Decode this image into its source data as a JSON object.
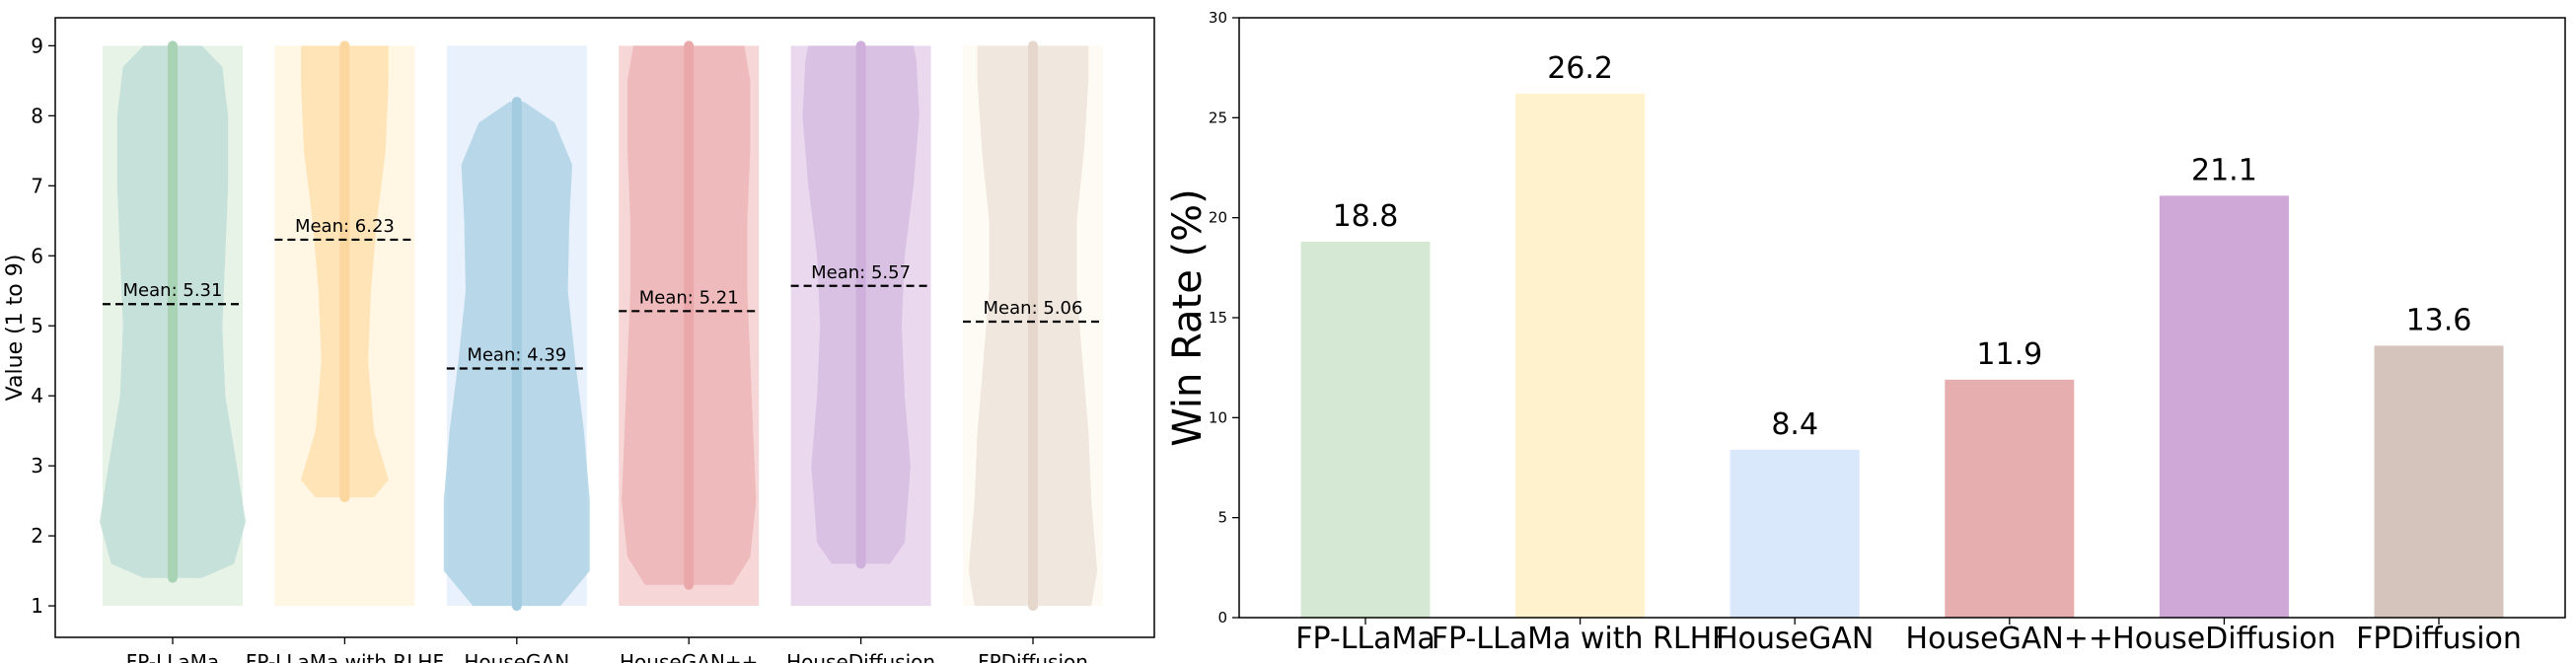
{
  "chart_data": [
    {
      "type": "violin",
      "ylabel": "Value (1 to 9)",
      "ylim": [
        0.55,
        9.4
      ],
      "yticks": [
        1,
        2,
        3,
        4,
        5,
        6,
        7,
        8,
        9
      ],
      "categories": [
        "FP-LLaMa",
        "FP-LLaMa with RLHF",
        "HouseGAN",
        "HouseGAN++",
        "HouseDiffusion",
        "FPDiffusion"
      ],
      "box_range": [
        1,
        9
      ],
      "series": [
        {
          "category": "FP-LLaMa",
          "mean": 5.31,
          "mean_label": "Mean: 5.31",
          "min": 1.4,
          "max": 9,
          "profile": [
            [
              1.4,
              0.2
            ],
            [
              1.6,
              0.42
            ],
            [
              2.2,
              0.5
            ],
            [
              3.0,
              0.44
            ],
            [
              4.0,
              0.36
            ],
            [
              5.0,
              0.34
            ],
            [
              6.0,
              0.36
            ],
            [
              7.0,
              0.38
            ],
            [
              8.0,
              0.38
            ],
            [
              8.7,
              0.34
            ],
            [
              9.0,
              0.2
            ]
          ],
          "colors": {
            "box": "#e8f3e8",
            "violin": "#bfddd6",
            "strip": "#a8d3b4"
          }
        },
        {
          "category": "FP-LLaMa with RLHF",
          "mean": 6.23,
          "mean_label": "Mean: 6.23",
          "min": 2.55,
          "max": 9,
          "profile": [
            [
              2.55,
              0.2
            ],
            [
              2.8,
              0.3
            ],
            [
              3.5,
              0.2
            ],
            [
              4.5,
              0.16
            ],
            [
              5.5,
              0.18
            ],
            [
              6.5,
              0.22
            ],
            [
              7.5,
              0.28
            ],
            [
              8.5,
              0.3
            ],
            [
              9.0,
              0.3
            ]
          ],
          "colors": {
            "box": "#fff6e3",
            "violin": "#ffe1b0",
            "strip": "#fdd7a0"
          }
        },
        {
          "category": "HouseGAN",
          "mean": 4.39,
          "mean_label": "Mean: 4.39",
          "min": 1.0,
          "max": 8.2,
          "profile": [
            [
              1.0,
              0.3
            ],
            [
              1.5,
              0.5
            ],
            [
              2.5,
              0.5
            ],
            [
              3.5,
              0.46
            ],
            [
              4.5,
              0.4
            ],
            [
              5.5,
              0.35
            ],
            [
              6.5,
              0.36
            ],
            [
              7.3,
              0.38
            ],
            [
              7.9,
              0.26
            ],
            [
              8.2,
              0.05
            ]
          ],
          "colors": {
            "box": "#e8f1fc",
            "violin": "#afd3e6",
            "strip": "#a4cce0"
          }
        },
        {
          "category": "HouseGAN++",
          "mean": 5.21,
          "mean_label": "Mean: 5.21",
          "min": 1.3,
          "max": 9,
          "profile": [
            [
              1.3,
              0.3
            ],
            [
              1.7,
              0.42
            ],
            [
              2.5,
              0.46
            ],
            [
              3.5,
              0.44
            ],
            [
              4.5,
              0.42
            ],
            [
              5.5,
              0.4
            ],
            [
              6.5,
              0.4
            ],
            [
              7.5,
              0.42
            ],
            [
              8.5,
              0.42
            ],
            [
              9.0,
              0.38
            ]
          ],
          "colors": {
            "box": "#f6d6d6",
            "violin": "#ecb5b6",
            "strip": "#eaa8aa"
          }
        },
        {
          "category": "HouseDiffusion",
          "mean": 5.57,
          "mean_label": "Mean: 5.57",
          "min": 1.6,
          "max": 9,
          "profile": [
            [
              1.6,
              0.2
            ],
            [
              1.9,
              0.3
            ],
            [
              3.0,
              0.34
            ],
            [
              4.0,
              0.3
            ],
            [
              5.0,
              0.28
            ],
            [
              6.0,
              0.3
            ],
            [
              7.0,
              0.36
            ],
            [
              8.0,
              0.4
            ],
            [
              8.8,
              0.38
            ],
            [
              9.0,
              0.36
            ]
          ],
          "colors": {
            "box": "#ead8ef",
            "violin": "#d6bde2",
            "strip": "#cfb0dc"
          }
        },
        {
          "category": "FPDiffusion",
          "mean": 5.06,
          "mean_label": "Mean: 5.06",
          "min": 1.0,
          "max": 9,
          "profile": [
            [
              1.0,
              0.4
            ],
            [
              1.5,
              0.44
            ],
            [
              2.5,
              0.4
            ],
            [
              3.5,
              0.38
            ],
            [
              4.5,
              0.34
            ],
            [
              5.5,
              0.3
            ],
            [
              6.5,
              0.3
            ],
            [
              7.5,
              0.35
            ],
            [
              8.5,
              0.38
            ],
            [
              9.0,
              0.38
            ]
          ],
          "colors": {
            "box": "#fdfbf3",
            "violin": "#ede3d9",
            "strip": "#e5d7cb"
          }
        }
      ]
    },
    {
      "type": "bar",
      "ylabel": "Win Rate (%)",
      "ylim": [
        0,
        30
      ],
      "yticks": [
        0,
        5,
        10,
        15,
        20,
        25,
        30
      ],
      "categories": [
        "FP-LLaMa",
        "FP-LLaMa with RLHF",
        "HouseGAN",
        "HouseGAN++",
        "HouseDiffusion",
        "FPDiffusion"
      ],
      "values": [
        18.8,
        26.2,
        8.4,
        11.9,
        21.1,
        13.6
      ],
      "value_labels": [
        "18.8",
        "26.2",
        "8.4",
        "11.9",
        "21.1",
        "13.6"
      ],
      "colors": [
        "#d5e8d4",
        "#fff2cc",
        "#dae8fc",
        "#e6aeae",
        "#d0a8d8",
        "#d5c4bb"
      ]
    }
  ]
}
